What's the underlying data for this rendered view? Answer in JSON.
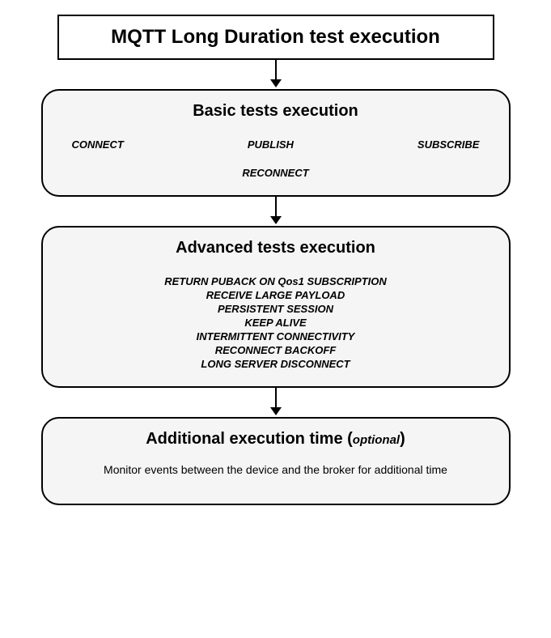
{
  "diagram": {
    "type": "flowchart",
    "background_color": "#ffffff",
    "node_fill": "#f5f5f5",
    "node_border": "#000000",
    "arrow_color": "#000000",
    "title": {
      "text": "MQTT Long Duration test execution",
      "fontsize": 24,
      "fontweight": "900",
      "border_color": "#000000"
    },
    "basic": {
      "title": "Basic tests execution",
      "row1": {
        "a": "CONNECT",
        "b": "PUBLISH",
        "c": "SUBSCRIBE"
      },
      "row2": "RECONNECT",
      "title_fontsize": 20,
      "item_fontsize": 13,
      "border_radius": 22
    },
    "advanced": {
      "title": "Advanced tests execution",
      "items": {
        "i0": "RETURN PUBACK ON Qos1 SUBSCRIPTION",
        "i1": "RECEIVE LARGE PAYLOAD",
        "i2": "PERSISTENT SESSION",
        "i3": "KEEP ALIVE",
        "i4": "INTERMITTENT CONNECTIVITY",
        "i5": "RECONNECT BACKOFF",
        "i6": "LONG SERVER DISCONNECT"
      },
      "title_fontsize": 20,
      "item_fontsize": 13,
      "border_radius": 22
    },
    "additional": {
      "title_prefix": "Additional execution time (",
      "title_optional": "optional",
      "title_suffix": ")",
      "desc": "Monitor events between the device and the broker for additional time",
      "title_fontsize": 20,
      "desc_fontsize": 14,
      "border_radius": 22
    }
  }
}
